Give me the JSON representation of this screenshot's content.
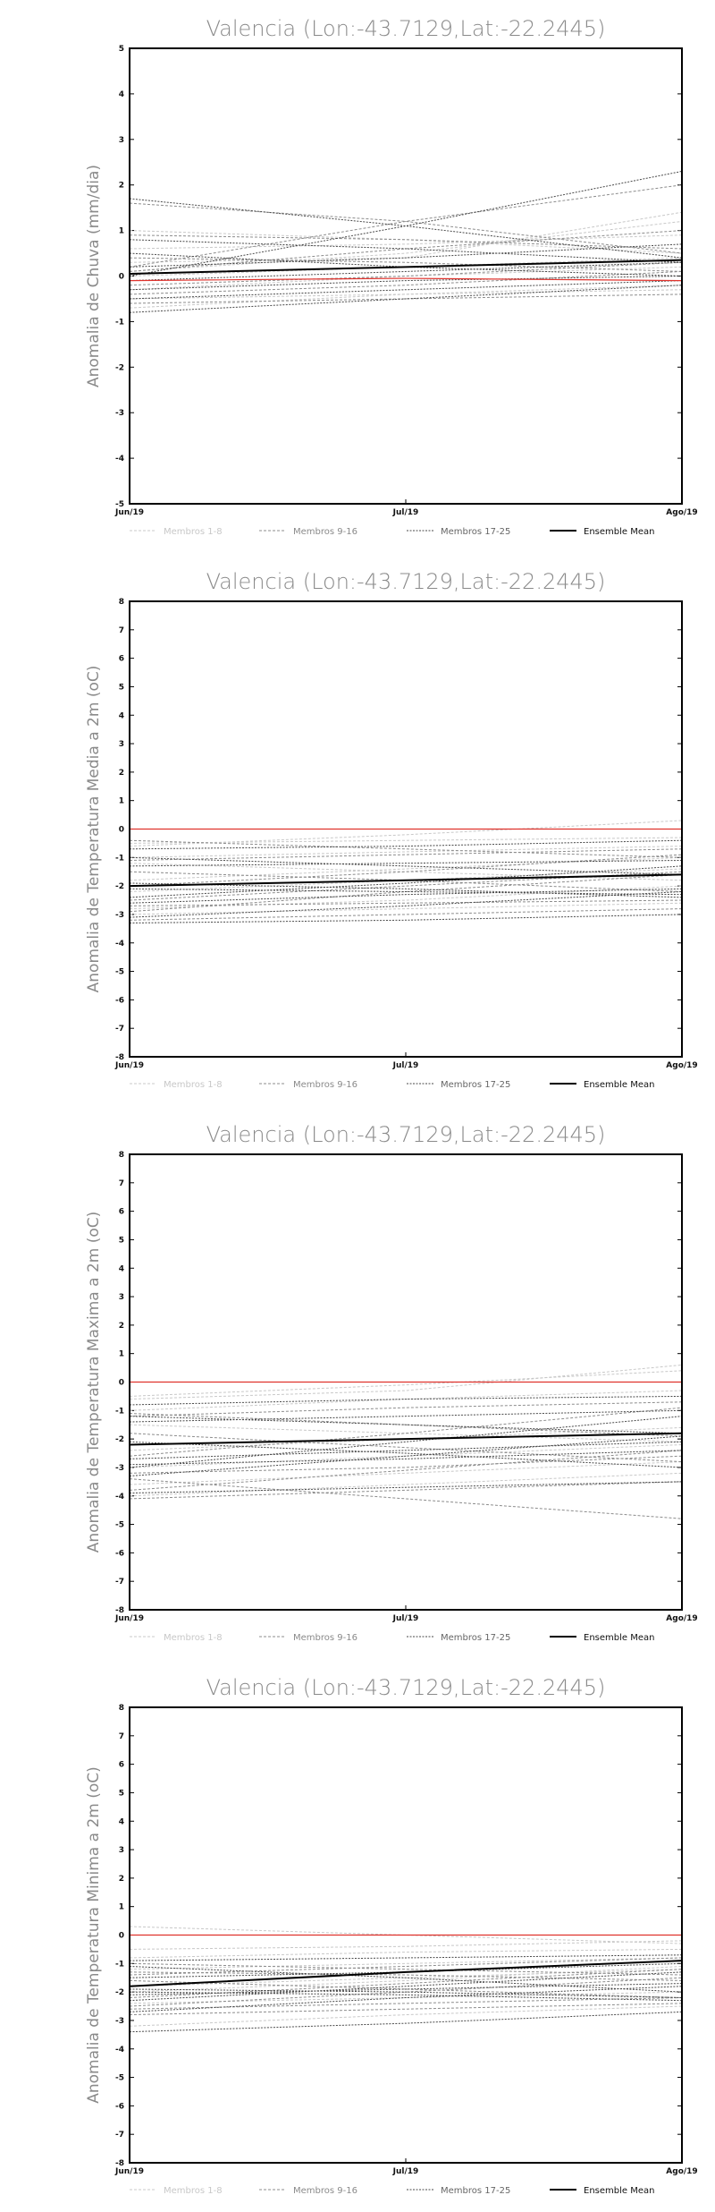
{
  "chart_data": [
    {
      "type": "line",
      "title": "Valencia (Lon:-43.7129,Lat:-22.2445)",
      "ylabel": "Anomalia de Chuva (mm/dia)",
      "xlabel": "",
      "x": [
        "Jun/19",
        "Jul/19",
        "Ago/19"
      ],
      "ylim": [
        -5,
        5
      ],
      "yticks": [
        -5,
        -4,
        -3,
        -2,
        -1,
        0,
        1,
        2,
        3,
        4,
        5
      ],
      "legend": [
        "Membros 1-8",
        "Membros 9-16",
        "Membros 17-25",
        "Ensemble Mean"
      ],
      "legend_position": "bottom",
      "grid": false,
      "members": [
        {
          "group": 1,
          "values": [
            1.0,
            0.8,
            0.5
          ]
        },
        {
          "group": 1,
          "values": [
            0.3,
            0.4,
            1.4
          ]
        },
        {
          "group": 1,
          "values": [
            -0.3,
            0.0,
            0.2
          ]
        },
        {
          "group": 1,
          "values": [
            -0.5,
            -0.4,
            -0.3
          ]
        },
        {
          "group": 1,
          "values": [
            0.1,
            0.5,
            1.2
          ]
        },
        {
          "group": 1,
          "values": [
            -0.7,
            -0.4,
            -0.2
          ]
        },
        {
          "group": 1,
          "values": [
            0.6,
            0.7,
            0.9
          ]
        },
        {
          "group": 1,
          "values": [
            0.0,
            0.2,
            0.4
          ]
        },
        {
          "group": 2,
          "values": [
            1.6,
            1.2,
            0.5
          ]
        },
        {
          "group": 2,
          "values": [
            0.2,
            1.2,
            2.0
          ]
        },
        {
          "group": 2,
          "values": [
            -0.2,
            0.0,
            0.3
          ]
        },
        {
          "group": 2,
          "values": [
            0.9,
            0.8,
            0.6
          ]
        },
        {
          "group": 2,
          "values": [
            -0.4,
            -0.2,
            0.1
          ]
        },
        {
          "group": 2,
          "values": [
            0.4,
            0.3,
            0.1
          ]
        },
        {
          "group": 2,
          "values": [
            -0.6,
            -0.5,
            -0.4
          ]
        },
        {
          "group": 2,
          "values": [
            0.1,
            0.6,
            1.0
          ]
        },
        {
          "group": 3,
          "values": [
            1.7,
            1.1,
            0.4
          ]
        },
        {
          "group": 3,
          "values": [
            0.0,
            1.1,
            2.3
          ]
        },
        {
          "group": 3,
          "values": [
            -0.5,
            -0.3,
            -0.1
          ]
        },
        {
          "group": 3,
          "values": [
            0.5,
            0.2,
            0.0
          ]
        },
        {
          "group": 3,
          "values": [
            -0.3,
            -0.1,
            0.0
          ]
        },
        {
          "group": 3,
          "values": [
            0.2,
            0.4,
            0.7
          ]
        },
        {
          "group": 3,
          "values": [
            -0.8,
            -0.5,
            -0.2
          ]
        },
        {
          "group": 3,
          "values": [
            0.8,
            0.6,
            0.3
          ]
        },
        {
          "group": 3,
          "values": [
            -0.1,
            0.1,
            0.3
          ]
        }
      ],
      "reference": [
        -0.1,
        -0.05,
        -0.1
      ],
      "ensemble_mean": [
        0.05,
        0.2,
        0.35
      ]
    },
    {
      "type": "line",
      "title": "Valencia (Lon:-43.7129,Lat:-22.2445)",
      "ylabel": "Anomalia de Temperatura Media a 2m (oC)",
      "xlabel": "",
      "x": [
        "Jun/19",
        "Jul/19",
        "Ago/19"
      ],
      "ylim": [
        -8,
        8
      ],
      "yticks": [
        -8,
        -7,
        -6,
        -5,
        -4,
        -3,
        -2,
        -1,
        0,
        1,
        2,
        3,
        4,
        5,
        6,
        7,
        8
      ],
      "legend": [
        "Membros 1-8",
        "Membros 9-16",
        "Membros 17-25",
        "Ensemble Mean"
      ],
      "legend_position": "bottom",
      "grid": false,
      "members": [
        {
          "group": 1,
          "values": [
            -0.5,
            -0.4,
            -0.3
          ]
        },
        {
          "group": 1,
          "values": [
            -1.0,
            -0.8,
            -0.6
          ]
        },
        {
          "group": 1,
          "values": [
            -2.8,
            -2.5,
            -2.0
          ]
        },
        {
          "group": 1,
          "values": [
            -1.8,
            -1.4,
            -1.0
          ]
        },
        {
          "group": 1,
          "values": [
            -3.0,
            -2.8,
            -2.6
          ]
        },
        {
          "group": 1,
          "values": [
            -1.2,
            -1.5,
            -1.8
          ]
        },
        {
          "group": 1,
          "values": [
            -2.2,
            -1.8,
            -1.4
          ]
        },
        {
          "group": 1,
          "values": [
            -0.6,
            -0.2,
            0.3
          ]
        },
        {
          "group": 2,
          "values": [
            -2.5,
            -2.0,
            -1.5
          ]
        },
        {
          "group": 2,
          "values": [
            -0.4,
            -0.7,
            -1.0
          ]
        },
        {
          "group": 2,
          "values": [
            -3.2,
            -3.0,
            -2.8
          ]
        },
        {
          "group": 2,
          "values": [
            -1.5,
            -1.8,
            -2.2
          ]
        },
        {
          "group": 2,
          "values": [
            -2.0,
            -1.5,
            -0.9
          ]
        },
        {
          "group": 2,
          "values": [
            -2.7,
            -2.6,
            -2.5
          ]
        },
        {
          "group": 2,
          "values": [
            -1.1,
            -0.9,
            -0.7
          ]
        },
        {
          "group": 2,
          "values": [
            -2.9,
            -2.2,
            -1.6
          ]
        },
        {
          "group": 3,
          "values": [
            -0.7,
            -0.6,
            -0.4
          ]
        },
        {
          "group": 3,
          "values": [
            -2.6,
            -2.3,
            -2.1
          ]
        },
        {
          "group": 3,
          "values": [
            -1.3,
            -1.2,
            -1.1
          ]
        },
        {
          "group": 3,
          "values": [
            -3.3,
            -3.2,
            -3.0
          ]
        },
        {
          "group": 3,
          "values": [
            -1.9,
            -2.1,
            -2.4
          ]
        },
        {
          "group": 3,
          "values": [
            -2.4,
            -1.9,
            -1.3
          ]
        },
        {
          "group": 3,
          "values": [
            -1.0,
            -1.3,
            -1.6
          ]
        },
        {
          "group": 3,
          "values": [
            -2.1,
            -2.2,
            -2.3
          ]
        },
        {
          "group": 3,
          "values": [
            -3.1,
            -2.7,
            -2.2
          ]
        }
      ],
      "reference": [
        0.0,
        0.0,
        0.0
      ],
      "ensemble_mean": [
        -2.0,
        -1.8,
        -1.6
      ]
    },
    {
      "type": "line",
      "title": "Valencia (Lon:-43.7129,Lat:-22.2445)",
      "ylabel": "Anomalia de Temperatura Maxima a 2m (oC)",
      "xlabel": "",
      "x": [
        "Jun/19",
        "Jul/19",
        "Ago/19"
      ],
      "ylim": [
        -8,
        8
      ],
      "yticks": [
        -8,
        -7,
        -6,
        -5,
        -4,
        -3,
        -2,
        -1,
        0,
        1,
        2,
        3,
        4,
        5,
        6,
        7,
        8
      ],
      "legend": [
        "Membros 1-8",
        "Membros 9-16",
        "Membros 17-25",
        "Ensemble Mean"
      ],
      "legend_position": "bottom",
      "grid": false,
      "members": [
        {
          "group": 1,
          "values": [
            -0.6,
            -0.3,
            0.6
          ]
        },
        {
          "group": 1,
          "values": [
            -1.0,
            -0.6,
            -0.3
          ]
        },
        {
          "group": 1,
          "values": [
            -3.6,
            -3.2,
            -2.8
          ]
        },
        {
          "group": 1,
          "values": [
            -2.4,
            -2.0,
            -1.6
          ]
        },
        {
          "group": 1,
          "values": [
            -4.0,
            -3.6,
            -3.2
          ]
        },
        {
          "group": 1,
          "values": [
            -1.5,
            -1.8,
            -2.1
          ]
        },
        {
          "group": 1,
          "values": [
            -3.0,
            -2.6,
            -2.2
          ]
        },
        {
          "group": 1,
          "values": [
            -0.5,
            -0.1,
            0.4
          ]
        },
        {
          "group": 2,
          "values": [
            -3.4,
            -4.1,
            -4.8
          ]
        },
        {
          "group": 2,
          "values": [
            -1.2,
            -0.9,
            -0.7
          ]
        },
        {
          "group": 2,
          "values": [
            -4.1,
            -3.8,
            -3.5
          ]
        },
        {
          "group": 2,
          "values": [
            -1.8,
            -2.3,
            -2.8
          ]
        },
        {
          "group": 2,
          "values": [
            -2.6,
            -1.8,
            -0.9
          ]
        },
        {
          "group": 2,
          "values": [
            -3.2,
            -3.0,
            -2.6
          ]
        },
        {
          "group": 2,
          "values": [
            -1.1,
            -1.5,
            -1.9
          ]
        },
        {
          "group": 2,
          "values": [
            -3.8,
            -3.1,
            -2.4
          ]
        },
        {
          "group": 3,
          "values": [
            -0.8,
            -0.6,
            -0.5
          ]
        },
        {
          "group": 3,
          "values": [
            -2.9,
            -2.7,
            -2.4
          ]
        },
        {
          "group": 3,
          "values": [
            -1.4,
            -1.2,
            -1.0
          ]
        },
        {
          "group": 3,
          "values": [
            -3.9,
            -3.7,
            -3.5
          ]
        },
        {
          "group": 3,
          "values": [
            -2.1,
            -2.5,
            -3.0
          ]
        },
        {
          "group": 3,
          "values": [
            -3.3,
            -2.6,
            -1.9
          ]
        },
        {
          "group": 3,
          "values": [
            -1.2,
            -1.5,
            -1.8
          ]
        },
        {
          "group": 3,
          "values": [
            -2.7,
            -2.4,
            -2.1
          ]
        },
        {
          "group": 3,
          "values": [
            -3.0,
            -2.1,
            -1.2
          ]
        }
      ],
      "reference": [
        0.0,
        0.0,
        0.0
      ],
      "ensemble_mean": [
        -2.2,
        -2.0,
        -1.8
      ]
    },
    {
      "type": "line",
      "title": "Valencia (Lon:-43.7129,Lat:-22.2445)",
      "ylabel": "Anomalia de Temperatura Minima a 2m (oC)",
      "xlabel": "",
      "x": [
        "Jun/19",
        "Jul/19",
        "Ago/19"
      ],
      "ylim": [
        -8,
        8
      ],
      "yticks": [
        -8,
        -7,
        -6,
        -5,
        -4,
        -3,
        -2,
        -1,
        0,
        1,
        2,
        3,
        4,
        5,
        6,
        7,
        8
      ],
      "legend": [
        "Membros 1-8",
        "Membros 9-16",
        "Membros 17-25",
        "Ensemble Mean"
      ],
      "legend_position": "bottom",
      "grid": false,
      "members": [
        {
          "group": 1,
          "values": [
            0.3,
            0.0,
            -0.3
          ]
        },
        {
          "group": 1,
          "values": [
            -1.2,
            -1.0,
            -0.8
          ]
        },
        {
          "group": 1,
          "values": [
            -2.4,
            -2.2,
            -2.0
          ]
        },
        {
          "group": 1,
          "values": [
            -1.8,
            -1.5,
            -1.2
          ]
        },
        {
          "group": 1,
          "values": [
            -3.2,
            -2.8,
            -2.5
          ]
        },
        {
          "group": 1,
          "values": [
            -0.5,
            -0.4,
            -0.2
          ]
        },
        {
          "group": 1,
          "values": [
            -2.0,
            -1.6,
            -1.1
          ]
        },
        {
          "group": 1,
          "values": [
            -0.8,
            -0.6,
            -0.5
          ]
        },
        {
          "group": 2,
          "values": [
            -1.6,
            -1.9,
            -2.2
          ]
        },
        {
          "group": 2,
          "values": [
            -1.4,
            -1.1,
            -0.8
          ]
        },
        {
          "group": 2,
          "values": [
            -2.6,
            -2.4,
            -2.2
          ]
        },
        {
          "group": 2,
          "values": [
            -1.0,
            -1.2,
            -1.4
          ]
        },
        {
          "group": 2,
          "values": [
            -2.2,
            -1.7,
            -1.2
          ]
        },
        {
          "group": 2,
          "values": [
            -2.8,
            -2.6,
            -2.4
          ]
        },
        {
          "group": 2,
          "values": [
            -1.3,
            -1.4,
            -1.6
          ]
        },
        {
          "group": 2,
          "values": [
            -2.5,
            -2.0,
            -1.5
          ]
        },
        {
          "group": 3,
          "values": [
            -0.9,
            -0.8,
            -0.7
          ]
        },
        {
          "group": 3,
          "values": [
            -2.1,
            -1.9,
            -1.7
          ]
        },
        {
          "group": 3,
          "values": [
            -1.5,
            -1.3,
            -1.0
          ]
        },
        {
          "group": 3,
          "values": [
            -3.4,
            -3.1,
            -2.7
          ]
        },
        {
          "group": 3,
          "values": [
            -1.9,
            -2.0,
            -2.2
          ]
        },
        {
          "group": 3,
          "values": [
            -2.3,
            -1.8,
            -1.3
          ]
        },
        {
          "group": 3,
          "values": [
            -1.1,
            -1.5,
            -2.0
          ]
        },
        {
          "group": 3,
          "values": [
            -2.0,
            -2.1,
            -2.3
          ]
        },
        {
          "group": 3,
          "values": [
            -2.7,
            -2.2,
            -1.8
          ]
        }
      ],
      "reference": [
        0.0,
        0.0,
        0.0
      ],
      "ensemble_mean": [
        -1.8,
        -1.3,
        -0.9
      ]
    }
  ],
  "colors": {
    "members_1_8": "#c8c8c8",
    "members_9_16": "#8c8c8c",
    "members_17_25": "#4a4a4a",
    "ensemble_mean": "#000000",
    "reference": "#e0332d",
    "title": "#8a8a8a"
  }
}
